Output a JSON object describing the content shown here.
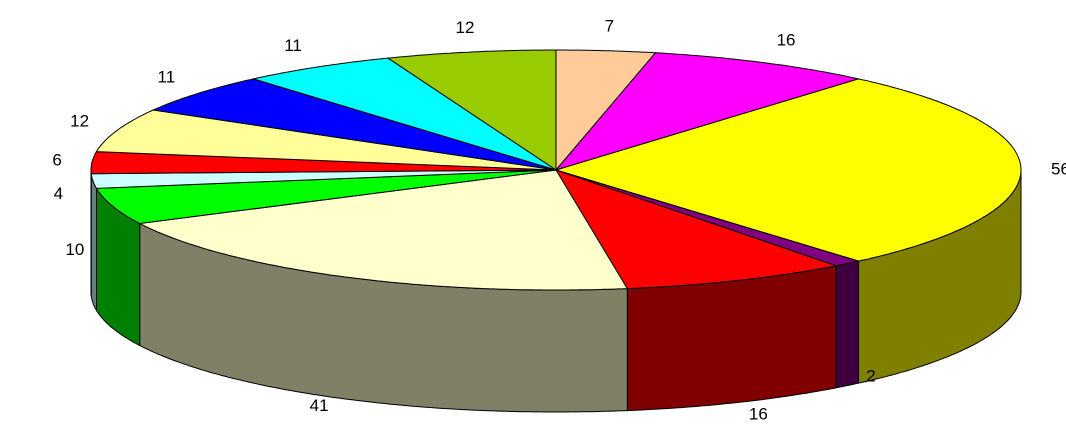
{
  "chart_data": {
    "type": "pie",
    "values": [
      7,
      16,
      56,
      2,
      16,
      41,
      10,
      4,
      6,
      12,
      11,
      11,
      12
    ],
    "colors": [
      "#ffcc99",
      "#ff00ff",
      "#ffff00",
      "#800080",
      "#ff0000",
      "#ffffcc",
      "#00ff00",
      "#ccffff",
      "#ff0000",
      "#ffff99",
      "#0000ff",
      "#00ffff",
      "#99cc00"
    ]
  }
}
